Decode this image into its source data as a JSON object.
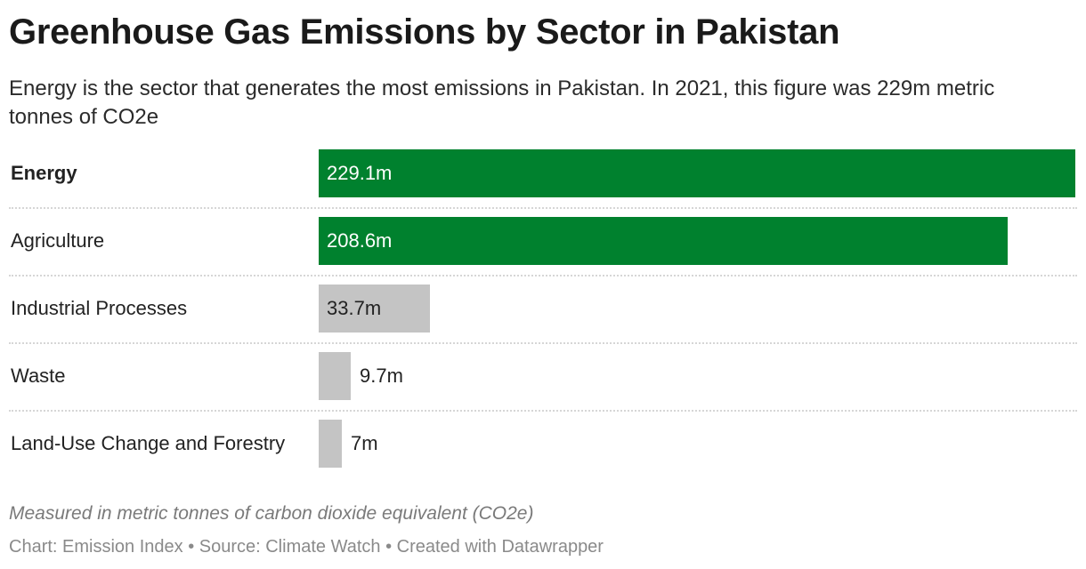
{
  "title": "Greenhouse Gas Emissions by Sector in Pakistan",
  "subtitle": "Energy is the sector that generates the most emissions in Pakistan. In 2021, this figure was 229m metric tonnes of CO2e",
  "notes": "Measured in metric tonnes of carbon dioxide equivalent (CO2e)",
  "footer": "Chart: Emission Index • Source: Climate Watch • Created with Datawrapper",
  "colors": {
    "highlight": "#00812e",
    "other": "#c4c4c4"
  },
  "chart_data": {
    "type": "bar",
    "orientation": "horizontal",
    "categories": [
      "Energy",
      "Agriculture",
      "Industrial Processes",
      "Waste",
      "Land-Use Change and Forestry"
    ],
    "values": [
      229.1,
      208.6,
      33.7,
      9.7,
      7
    ],
    "value_labels": [
      "229.1m",
      "208.6m",
      "33.7m",
      "9.7m",
      "7m"
    ],
    "highlighted": [
      true,
      true,
      false,
      false,
      false
    ],
    "bold_category": "Energy",
    "grid": false
  }
}
